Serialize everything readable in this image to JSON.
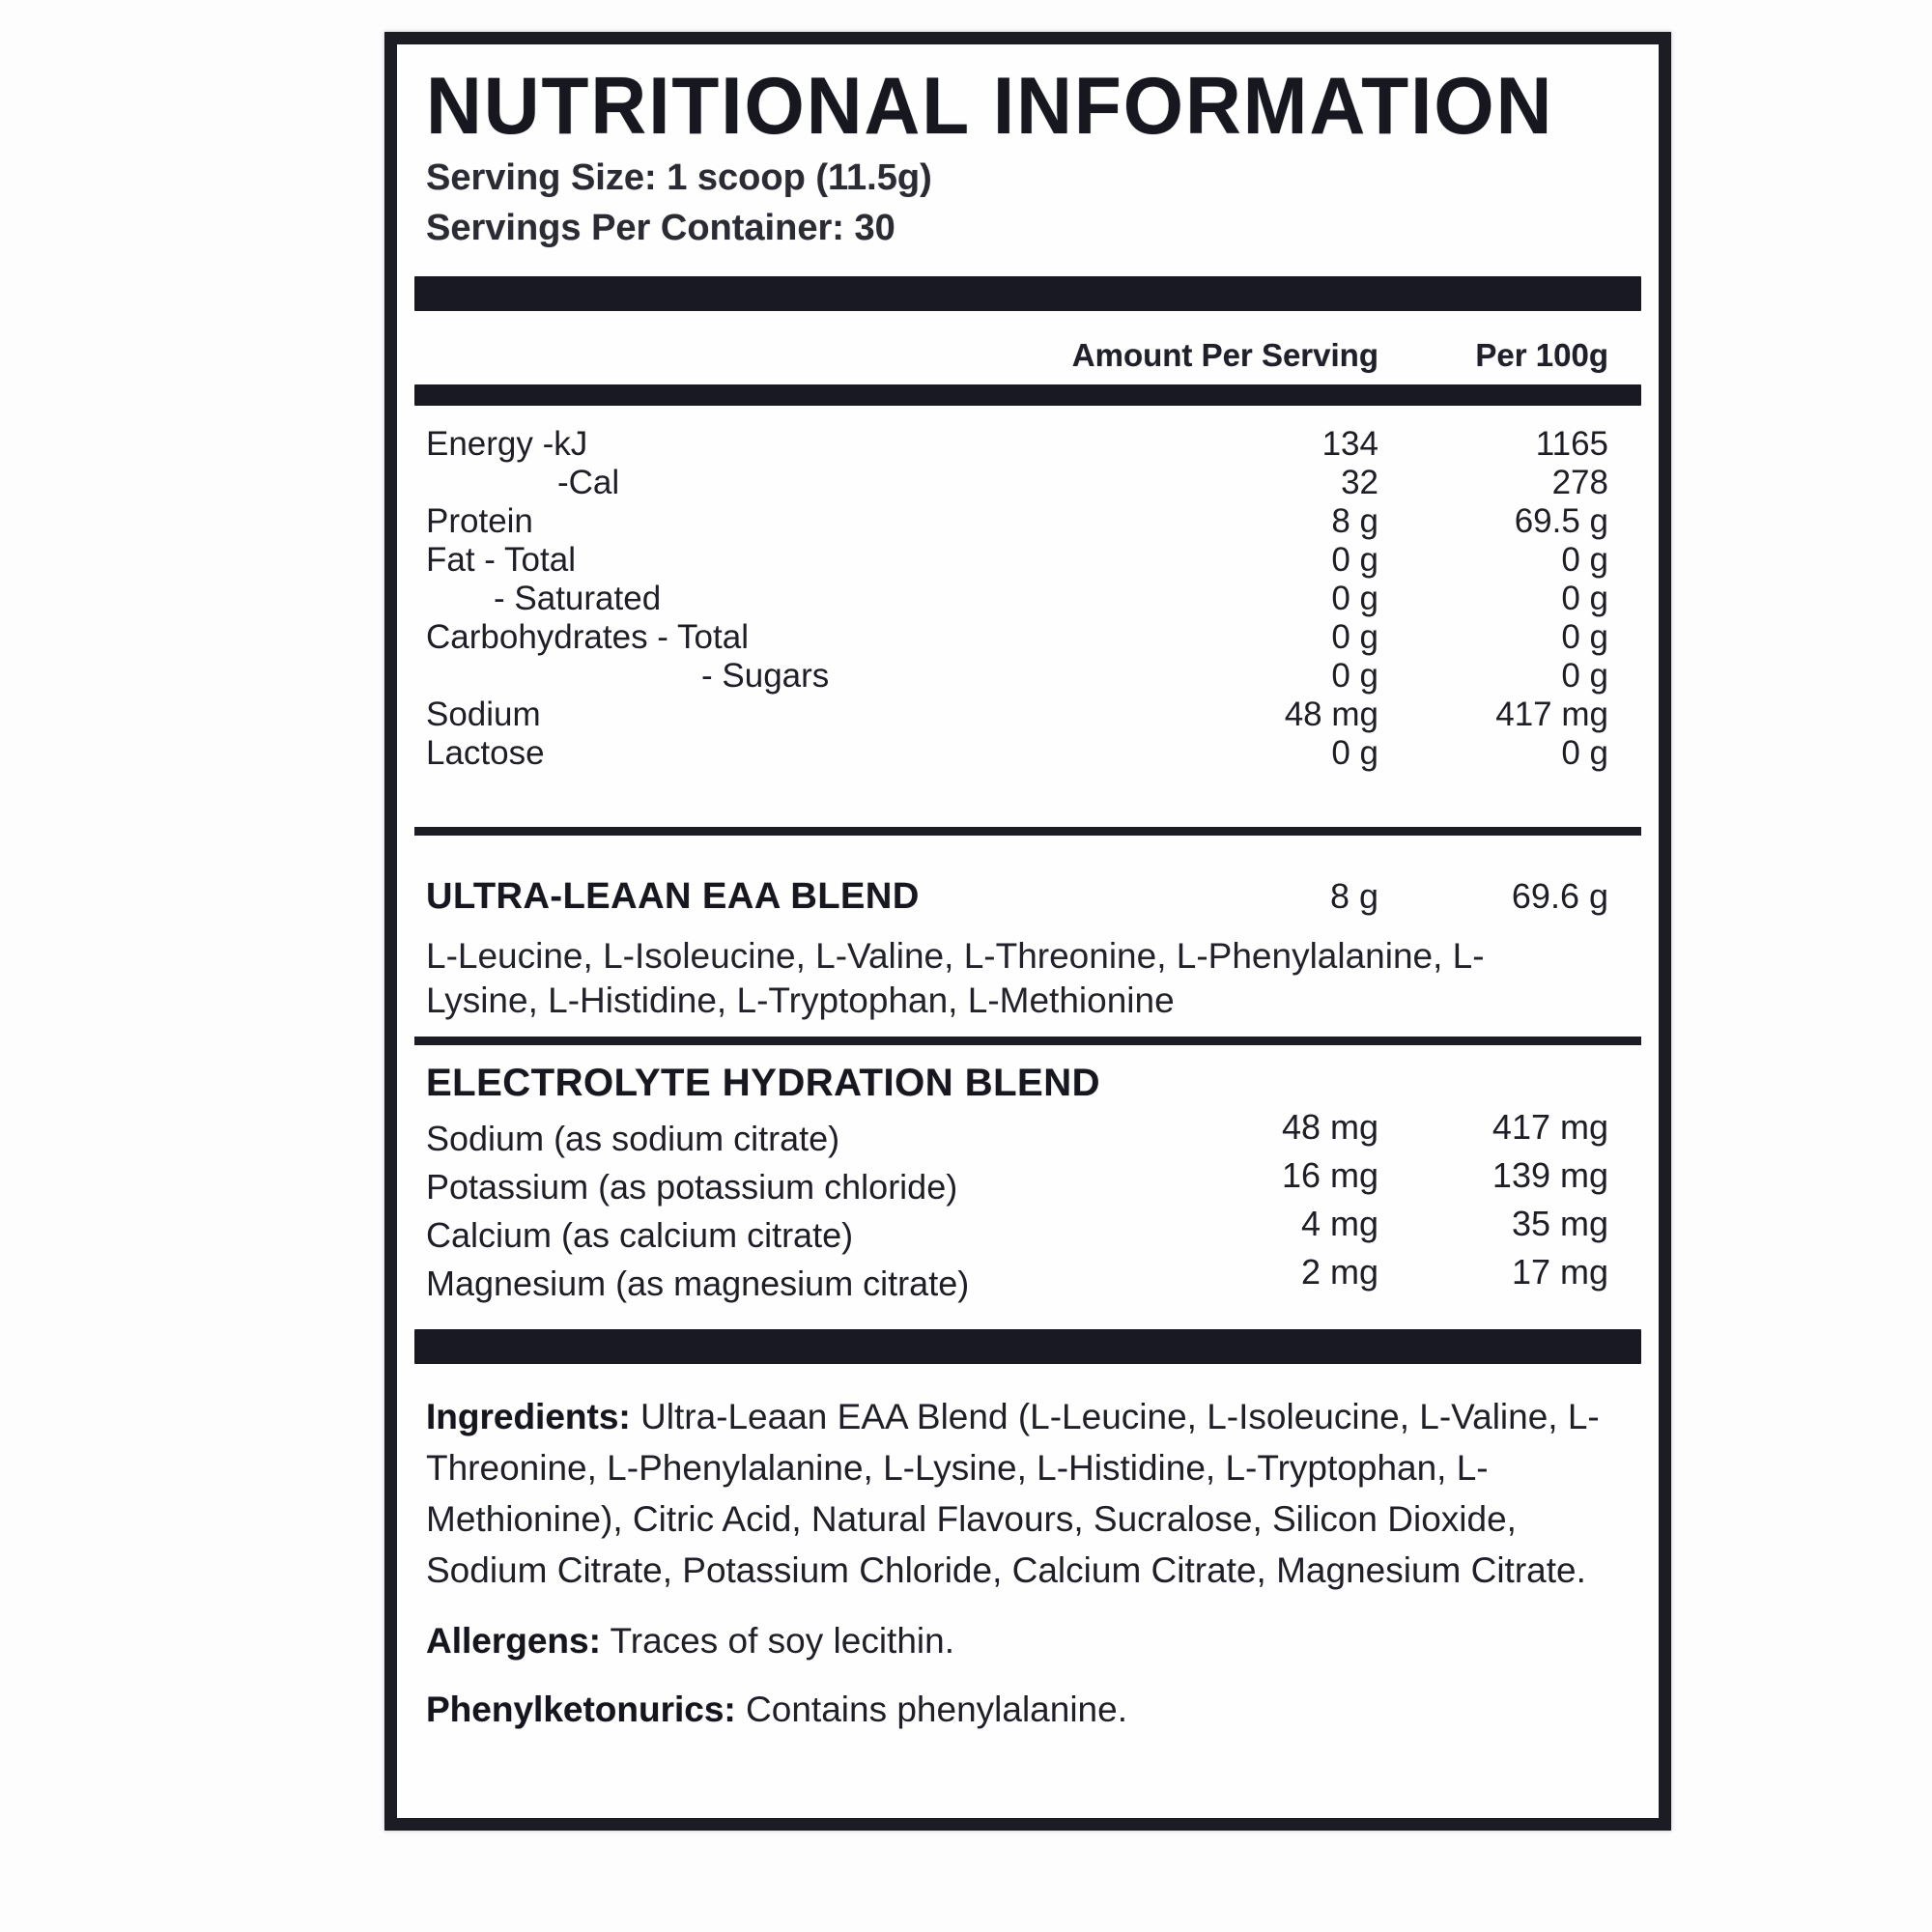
{
  "label": {
    "title": "NUTRITIONAL INFORMATION",
    "serving_size": "Serving Size: 1 scoop (11.5g)",
    "servings_per_container": "Servings Per Container: 30",
    "columns": {
      "amount_per_serving": "Amount Per Serving",
      "per_100g": "Per 100g"
    },
    "main_rows": [
      {
        "label": "Energy -kJ",
        "indent": 0,
        "per_serving": "134",
        "per_100g": "1165"
      },
      {
        "label": "-Cal",
        "indent": 2,
        "per_serving": "32",
        "per_100g": "278"
      },
      {
        "label": "Protein",
        "indent": 0,
        "per_serving": "8 g",
        "per_100g": "69.5 g"
      },
      {
        "label": "Fat - Total",
        "indent": 0,
        "per_serving": "0 g",
        "per_100g": "0 g"
      },
      {
        "label": "- Saturated",
        "indent": 1,
        "per_serving": "0 g",
        "per_100g": "0 g"
      },
      {
        "label": "Carbohydrates - Total",
        "indent": 0,
        "per_serving": "0 g",
        "per_100g": "0 g"
      },
      {
        "label": "- Sugars",
        "indent": 3,
        "per_serving": "0 g",
        "per_100g": "0 g"
      },
      {
        "label": "Sodium",
        "indent": 0,
        "per_serving": "48 mg",
        "per_100g": "417 mg"
      },
      {
        "label": "Lactose",
        "indent": 0,
        "per_serving": "0 g",
        "per_100g": "0 g"
      }
    ],
    "eaa_blend": {
      "name": "ULTRA-LEAAN EAA BLEND",
      "per_serving": "8 g",
      "per_100g": "69.6 g",
      "description": "L-Leucine, L-Isoleucine, L-Valine, L-Threonine, L-Phenylalanine, L-Lysine, L-Histidine, L-Tryptophan, L-Methionine"
    },
    "electrolyte_blend": {
      "name": "ELECTROLYTE HYDRATION BLEND",
      "rows": [
        {
          "label": "Sodium (as sodium citrate)",
          "per_serving": "48 mg",
          "per_100g": "417 mg"
        },
        {
          "label": "Potassium (as potassium chloride)",
          "per_serving": "16 mg",
          "per_100g": "139 mg"
        },
        {
          "label": "Calcium (as calcium citrate)",
          "per_serving": "4 mg",
          "per_100g": "35 mg"
        },
        {
          "label": "Magnesium (as magnesium citrate)",
          "per_serving": "2 mg",
          "per_100g": "17 mg"
        }
      ]
    },
    "ingredients": {
      "label": "Ingredients:",
      "text": " Ultra-Leaan EAA Blend (L-Leucine, L-Isoleucine, L-Valine, L-Threonine, L-Phenylalanine, L-Lysine, L-Histidine, L-Tryptophan, L-Methionine), Citric Acid, Natural Flavours, Sucralose, Silicon Dioxide, Sodium Citrate, Potassium Chloride, Calcium Citrate, Magnesium Citrate."
    },
    "allergens": {
      "label": "Allergens:",
      "text": " Traces of soy lecithin."
    },
    "phenylketonurics": {
      "label": "Phenylketonurics:",
      "text": " Contains phenylalanine."
    },
    "colors": {
      "bar": "#191923",
      "border": "#1c1c24",
      "text": "#1e1e26",
      "background": "#fefefe"
    }
  }
}
